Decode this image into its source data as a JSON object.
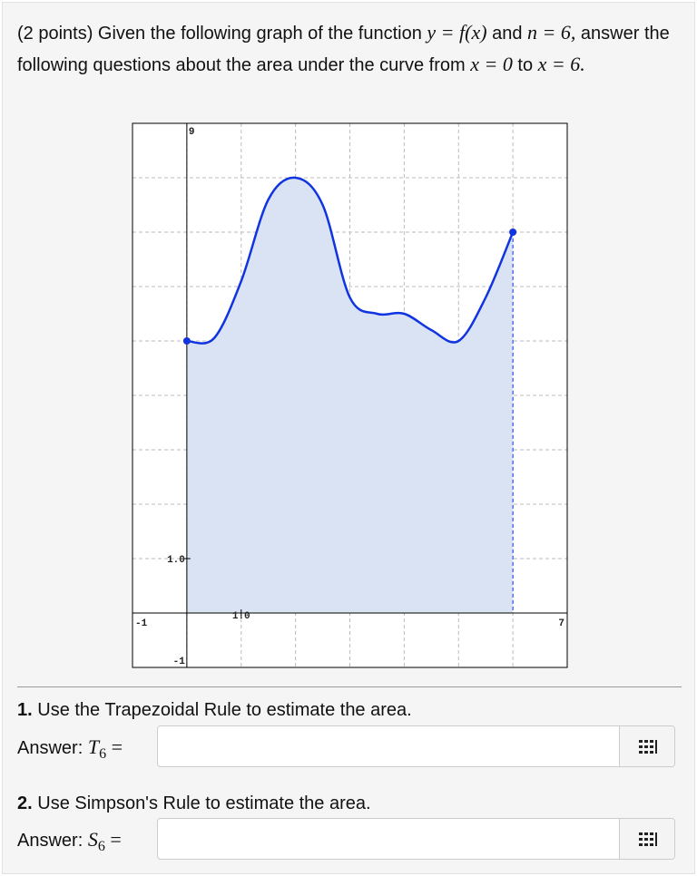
{
  "intro": {
    "parts": [
      "(2 points) Given the following graph of the function ",
      "y = f(x)",
      " and ",
      "n = 6,",
      " answer the following questions about the area under the curve from ",
      "x = 0",
      " to ",
      "x = 6."
    ]
  },
  "graph": {
    "xlim": [
      -1,
      7
    ],
    "ylim": [
      -1,
      9
    ],
    "grid": true,
    "xticks": [
      -1,
      {
        "value": 1,
        "label": "1.0"
      },
      7
    ],
    "yticks": [
      9,
      {
        "value": 1,
        "label": "1.0"
      },
      -1
    ],
    "x": [
      0,
      0.5,
      1,
      1.5,
      2,
      2.5,
      3,
      3.5,
      4,
      4.5,
      5,
      5.5,
      6
    ],
    "values": [
      5,
      5.05,
      6.1,
      7.6,
      8,
      7.5,
      5.8,
      5.5,
      5.5,
      5.2,
      5,
      5.8,
      7
    ],
    "color": "#1034e0",
    "fill": "#dae3f3"
  },
  "questions": [
    {
      "number": "1.",
      "text": "Use the Trapezoidal Rule to estimate the area.",
      "answer_label": "Answer:",
      "symbol": "T",
      "subscript": "6",
      "equals": "="
    },
    {
      "number": "2.",
      "text": "Use Simpson's Rule to estimate the area.",
      "answer_label": "Answer:",
      "symbol": "S",
      "subscript": "6",
      "equals": "="
    }
  ]
}
